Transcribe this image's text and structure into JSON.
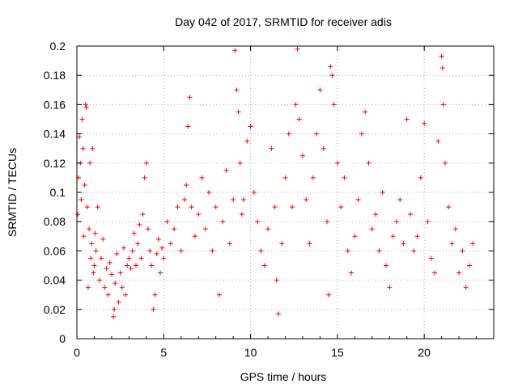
{
  "chart_data": {
    "type": "scatter",
    "title": "Day 042 of 2017, SRMTID for receiver adis",
    "xlabel": "GPS time / hours",
    "ylabel": "SRMTID / TECUs",
    "xlim": [
      0,
      24
    ],
    "ylim": [
      0,
      0.2
    ],
    "xticks": [
      0,
      5,
      10,
      15,
      20
    ],
    "yticks": [
      0,
      0.02,
      0.04,
      0.06,
      0.08,
      0.1,
      0.12,
      0.14,
      0.16,
      0.18,
      0.2
    ],
    "xtick_labels": [
      "0",
      "5",
      "10",
      "15",
      "20"
    ],
    "ytick_labels": [
      "0",
      "0.02",
      "0.04",
      "0.06",
      "0.08",
      "0.1",
      "0.12",
      "0.14",
      "0.16",
      "0.18",
      "0.2"
    ],
    "grid": true,
    "marker": "+",
    "color": "#ff0000",
    "series": [
      {
        "name": "SRMTID",
        "points": [
          [
            0.05,
            0.085
          ],
          [
            0.1,
            0.11
          ],
          [
            0.15,
            0.138
          ],
          [
            0.2,
            0.12
          ],
          [
            0.25,
            0.095
          ],
          [
            0.3,
            0.15
          ],
          [
            0.35,
            0.13
          ],
          [
            0.4,
            0.07
          ],
          [
            0.45,
            0.105
          ],
          [
            0.5,
            0.16
          ],
          [
            0.55,
            0.158
          ],
          [
            0.6,
            0.09
          ],
          [
            0.65,
            0.035
          ],
          [
            0.7,
            0.075
          ],
          [
            0.75,
            0.12
          ],
          [
            0.8,
            0.055
          ],
          [
            0.85,
            0.065
          ],
          [
            0.9,
            0.13
          ],
          [
            0.95,
            0.045
          ],
          [
            1.0,
            0.05
          ],
          [
            1.05,
            0.072
          ],
          [
            1.1,
            0.06
          ],
          [
            1.2,
            0.09
          ],
          [
            1.3,
            0.04
          ],
          [
            1.4,
            0.055
          ],
          [
            1.5,
            0.068
          ],
          [
            1.6,
            0.035
          ],
          [
            1.7,
            0.048
          ],
          [
            1.8,
            0.03
          ],
          [
            1.9,
            0.052
          ],
          [
            2.0,
            0.044
          ],
          [
            2.1,
            0.015
          ],
          [
            2.15,
            0.02
          ],
          [
            2.2,
            0.038
          ],
          [
            2.3,
            0.058
          ],
          [
            2.4,
            0.025
          ],
          [
            2.5,
            0.045
          ],
          [
            2.6,
            0.035
          ],
          [
            2.7,
            0.062
          ],
          [
            2.8,
            0.03
          ],
          [
            2.9,
            0.05
          ],
          [
            3.0,
            0.055
          ],
          [
            3.1,
            0.048
          ],
          [
            3.2,
            0.06
          ],
          [
            3.3,
            0.072
          ],
          [
            3.4,
            0.05
          ],
          [
            3.5,
            0.065
          ],
          [
            3.6,
            0.078
          ],
          [
            3.7,
            0.055
          ],
          [
            3.8,
            0.085
          ],
          [
            3.9,
            0.11
          ],
          [
            4.0,
            0.12
          ],
          [
            4.1,
            0.075
          ],
          [
            4.2,
            0.06
          ],
          [
            4.3,
            0.05
          ],
          [
            4.4,
            0.02
          ],
          [
            4.5,
            0.03
          ],
          [
            4.6,
            0.058
          ],
          [
            4.7,
            0.068
          ],
          [
            4.8,
            0.045
          ],
          [
            4.9,
            0.062
          ],
          [
            5.0,
            0.055
          ],
          [
            5.2,
            0.08
          ],
          [
            5.4,
            0.065
          ],
          [
            5.6,
            0.075
          ],
          [
            5.8,
            0.09
          ],
          [
            6.0,
            0.06
          ],
          [
            6.2,
            0.095
          ],
          [
            6.3,
            0.105
          ],
          [
            6.4,
            0.145
          ],
          [
            6.5,
            0.165
          ],
          [
            6.6,
            0.09
          ],
          [
            6.8,
            0.07
          ],
          [
            7.0,
            0.085
          ],
          [
            7.2,
            0.11
          ],
          [
            7.4,
            0.075
          ],
          [
            7.6,
            0.1
          ],
          [
            7.8,
            0.06
          ],
          [
            8.0,
            0.09
          ],
          [
            8.2,
            0.03
          ],
          [
            8.4,
            0.08
          ],
          [
            8.6,
            0.115
          ],
          [
            8.8,
            0.065
          ],
          [
            9.0,
            0.095
          ],
          [
            9.1,
            0.197
          ],
          [
            9.2,
            0.17
          ],
          [
            9.3,
            0.155
          ],
          [
            9.4,
            0.12
          ],
          [
            9.5,
            0.085
          ],
          [
            9.6,
            0.095
          ],
          [
            9.8,
            0.135
          ],
          [
            10.0,
            0.145
          ],
          [
            10.2,
            0.1
          ],
          [
            10.4,
            0.08
          ],
          [
            10.6,
            0.06
          ],
          [
            10.8,
            0.05
          ],
          [
            11.0,
            0.075
          ],
          [
            11.2,
            0.13
          ],
          [
            11.4,
            0.09
          ],
          [
            11.5,
            0.04
          ],
          [
            11.6,
            0.017
          ],
          [
            11.8,
            0.065
          ],
          [
            12.0,
            0.11
          ],
          [
            12.2,
            0.14
          ],
          [
            12.4,
            0.09
          ],
          [
            12.6,
            0.16
          ],
          [
            12.7,
            0.198
          ],
          [
            12.8,
            0.15
          ],
          [
            13.0,
            0.125
          ],
          [
            13.2,
            0.095
          ],
          [
            13.4,
            0.065
          ],
          [
            13.6,
            0.11
          ],
          [
            13.8,
            0.14
          ],
          [
            14.0,
            0.17
          ],
          [
            14.2,
            0.13
          ],
          [
            14.4,
            0.08
          ],
          [
            14.5,
            0.03
          ],
          [
            14.6,
            0.186
          ],
          [
            14.7,
            0.18
          ],
          [
            14.8,
            0.16
          ],
          [
            15.0,
            0.12
          ],
          [
            15.2,
            0.09
          ],
          [
            15.4,
            0.11
          ],
          [
            15.6,
            0.06
          ],
          [
            15.8,
            0.045
          ],
          [
            16.0,
            0.07
          ],
          [
            16.2,
            0.095
          ],
          [
            16.4,
            0.14
          ],
          [
            16.6,
            0.155
          ],
          [
            16.8,
            0.12
          ],
          [
            17.0,
            0.075
          ],
          [
            17.2,
            0.085
          ],
          [
            17.4,
            0.06
          ],
          [
            17.6,
            0.1
          ],
          [
            17.8,
            0.05
          ],
          [
            18.0,
            0.035
          ],
          [
            18.2,
            0.07
          ],
          [
            18.4,
            0.08
          ],
          [
            18.6,
            0.095
          ],
          [
            18.8,
            0.065
          ],
          [
            19.0,
            0.15
          ],
          [
            19.2,
            0.085
          ],
          [
            19.4,
            0.06
          ],
          [
            19.6,
            0.07
          ],
          [
            19.8,
            0.11
          ],
          [
            20.0,
            0.147
          ],
          [
            20.2,
            0.08
          ],
          [
            20.4,
            0.055
          ],
          [
            20.6,
            0.045
          ],
          [
            20.8,
            0.135
          ],
          [
            21.0,
            0.193
          ],
          [
            21.05,
            0.185
          ],
          [
            21.1,
            0.16
          ],
          [
            21.2,
            0.12
          ],
          [
            21.4,
            0.09
          ],
          [
            21.6,
            0.065
          ],
          [
            21.8,
            0.075
          ],
          [
            22.0,
            0.045
          ],
          [
            22.2,
            0.06
          ],
          [
            22.4,
            0.035
          ],
          [
            22.6,
            0.05
          ],
          [
            22.8,
            0.065
          ]
        ]
      }
    ]
  }
}
